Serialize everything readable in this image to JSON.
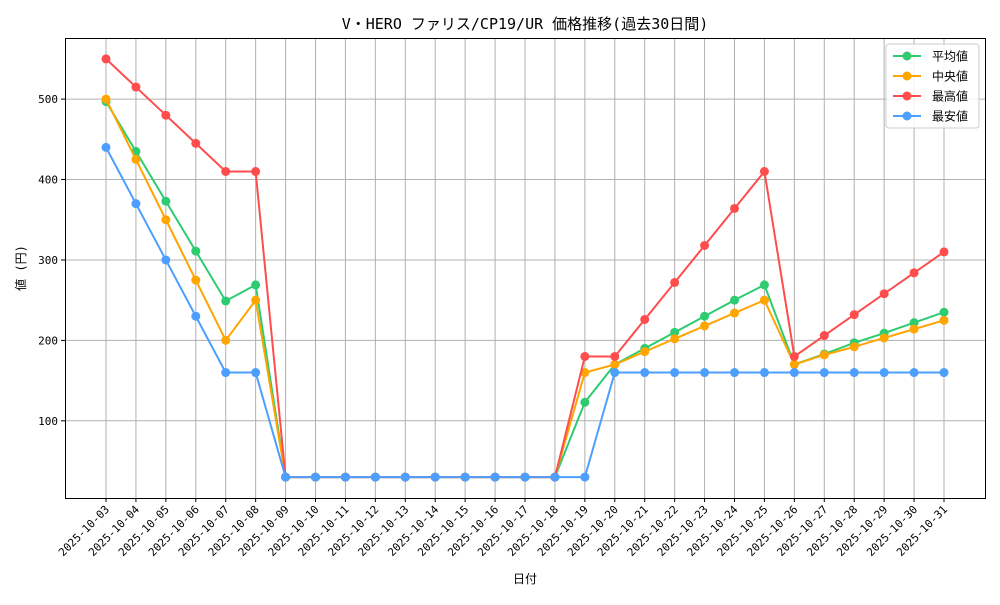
{
  "chart_data": {
    "type": "line",
    "title": "V・HERO ファリス/CP19/UR 価格推移(過去30日間)",
    "xlabel": "日付",
    "ylabel": "値 (円)",
    "ylim": [
      4,
      576
    ],
    "yticks": [
      100,
      200,
      300,
      400,
      500
    ],
    "grid": true,
    "legend_position": "top-right",
    "categories": [
      "2025-10-03",
      "2025-10-04",
      "2025-10-05",
      "2025-10-06",
      "2025-10-07",
      "2025-10-08",
      "2025-10-09",
      "2025-10-10",
      "2025-10-11",
      "2025-10-12",
      "2025-10-13",
      "2025-10-14",
      "2025-10-15",
      "2025-10-16",
      "2025-10-17",
      "2025-10-18",
      "2025-10-19",
      "2025-10-20",
      "2025-10-21",
      "2025-10-22",
      "2025-10-23",
      "2025-10-24",
      "2025-10-25",
      "2025-10-26",
      "2025-10-27",
      "2025-10-28",
      "2025-10-29",
      "2025-10-30",
      "2025-10-31"
    ],
    "series": [
      {
        "name": "平均値",
        "color": "#2ecc71",
        "values": [
          497,
          435,
          373,
          311,
          249,
          269,
          30,
          30,
          30,
          30,
          30,
          30,
          30,
          30,
          30,
          30,
          123,
          170,
          190,
          210,
          230,
          250,
          269,
          170,
          183,
          197,
          209,
          222,
          235
        ]
      },
      {
        "name": "中央値",
        "color": "#ffa500",
        "values": [
          500,
          425,
          350,
          275,
          200,
          250,
          30,
          30,
          30,
          30,
          30,
          30,
          30,
          30,
          30,
          30,
          160,
          170,
          186,
          202,
          218,
          234,
          250,
          170,
          182,
          192,
          203,
          214,
          225
        ]
      },
      {
        "name": "最高値",
        "color": "#ff4d4d",
        "values": [
          550,
          515,
          480,
          445,
          410,
          410,
          30,
          30,
          30,
          30,
          30,
          30,
          30,
          30,
          30,
          30,
          180,
          180,
          226,
          272,
          318,
          364,
          410,
          180,
          206,
          232,
          258,
          284,
          310
        ]
      },
      {
        "name": "最安値",
        "color": "#4d9fff",
        "values": [
          440,
          370,
          300,
          230,
          160,
          160,
          30,
          30,
          30,
          30,
          30,
          30,
          30,
          30,
          30,
          30,
          30,
          160,
          160,
          160,
          160,
          160,
          160,
          160,
          160,
          160,
          160,
          160,
          160
        ]
      }
    ]
  }
}
